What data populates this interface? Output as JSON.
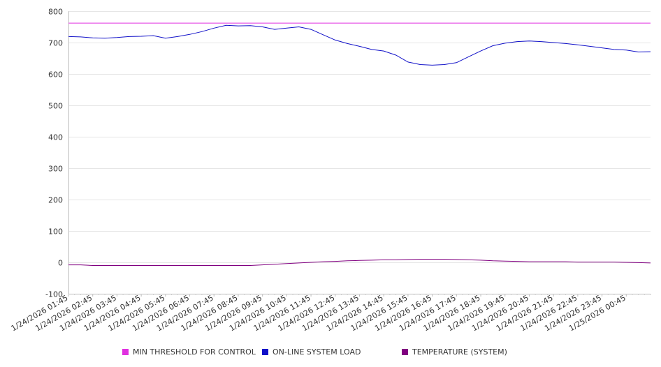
{
  "chart_data": {
    "type": "line",
    "title": "",
    "xlabel": "",
    "ylabel": "",
    "ylim": [
      -100,
      800
    ],
    "yticks": [
      -100,
      0,
      100,
      200,
      300,
      400,
      500,
      600,
      700,
      800
    ],
    "grid": "horizontal",
    "legend_position": "bottom",
    "x_tick_labels": [
      "1/24/2026 01:45",
      "1/24/2026 02:45",
      "1/24/2026 03:45",
      "1/24/2026 04:45",
      "1/24/2026 05:45",
      "1/24/2026 06:45",
      "1/24/2026 07:45",
      "1/24/2026 08:45",
      "1/24/2026 09:45",
      "1/24/2026 10:45",
      "1/24/2026 11:45",
      "1/24/2026 12:45",
      "1/24/2026 13:45",
      "1/24/2026 14:45",
      "1/24/2026 15:45",
      "1/24/2026 16:45",
      "1/24/2026 17:45",
      "1/24/2026 18:45",
      "1/24/2026 19:45",
      "1/24/2026 20:45",
      "1/24/2026 21:45",
      "1/24/2026 22:45",
      "1/24/2026 23:45",
      "1/25/2026 00:45"
    ],
    "x_hours": [
      0,
      0.5,
      1,
      1.5,
      2,
      2.5,
      3,
      3.5,
      4,
      4.5,
      5,
      5.5,
      6,
      6.5,
      7,
      7.5,
      8,
      8.5,
      9,
      9.5,
      10,
      10.5,
      11,
      11.5,
      12,
      12.5,
      13,
      13.5,
      14,
      14.5,
      15,
      15.5,
      16,
      16.5,
      17,
      17.5,
      18,
      18.5,
      19,
      19.5,
      20,
      20.5,
      21,
      21.5,
      22,
      22.5,
      23,
      23.5,
      24
    ],
    "series": [
      {
        "name": "MIN THRESHOLD FOR CONTROL",
        "color": "#e030e0",
        "values": [
          762,
          762,
          762,
          762,
          762,
          762,
          762,
          762,
          762,
          762,
          762,
          762,
          762,
          762,
          762,
          762,
          762,
          762,
          762,
          762,
          762,
          762,
          762,
          762,
          762,
          762,
          762,
          762,
          762,
          762,
          762,
          762,
          762,
          762,
          762,
          762,
          762,
          762,
          762,
          762,
          762,
          762,
          762,
          762,
          762,
          762,
          762,
          762,
          762
        ]
      },
      {
        "name": "ON-LINE SYSTEM LOAD",
        "color": "#1010c8",
        "values": [
          719,
          718,
          715,
          714,
          716,
          719,
          720,
          722,
          714,
          719,
          726,
          735,
          746,
          755,
          753,
          754,
          750,
          742,
          746,
          750,
          742,
          725,
          708,
          697,
          688,
          678,
          673,
          660,
          638,
          630,
          628,
          630,
          636,
          655,
          673,
          690,
          698,
          703,
          705,
          703,
          700,
          697,
          693,
          688,
          683,
          678,
          676,
          670,
          671
        ]
      },
      {
        "name": "TEMPERATURE (SYSTEM)",
        "color": "#800080",
        "values": [
          -8,
          -8,
          -10,
          -10,
          -10,
          -10,
          -10,
          -10,
          -10,
          -10,
          -10,
          -10,
          -10,
          -10,
          -10,
          -10,
          -8,
          -6,
          -4,
          -2,
          0,
          2,
          3,
          5,
          6,
          7,
          8,
          8,
          9,
          10,
          10,
          10,
          9,
          8,
          7,
          5,
          4,
          3,
          2,
          2,
          2,
          2,
          1,
          1,
          1,
          1,
          0,
          -1,
          -2
        ]
      }
    ]
  }
}
